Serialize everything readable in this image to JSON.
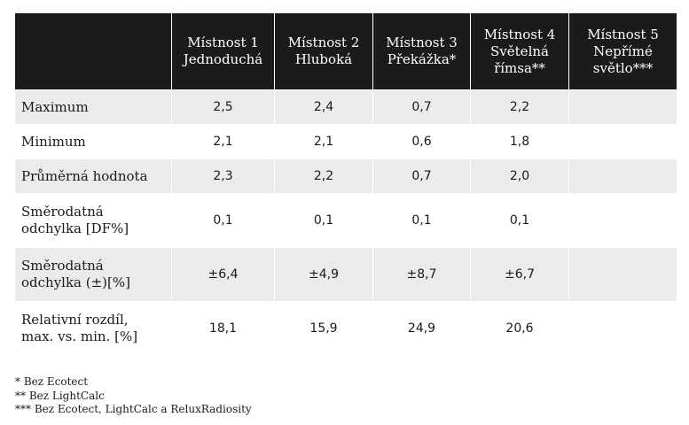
{
  "table": {
    "header": [
      "",
      "Místnost 1\nJednoduchá",
      "Místnost 2\nHluboká",
      "Místnost 3\nPřekážka*",
      "Místnost 4\nSvětelná\nřímsa**",
      "Místnost 5\nNepřímé\nsvětlo***"
    ],
    "rows": [
      {
        "label": "Maximum",
        "values": [
          "2,5",
          "2,4",
          "0,7",
          "2,2",
          ""
        ]
      },
      {
        "label": "Minimum",
        "values": [
          "2,1",
          "2,1",
          "0,6",
          "1,8",
          ""
        ]
      },
      {
        "label": "Průměrná hodnota",
        "values": [
          "2,3",
          "2,2",
          "0,7",
          "2,0",
          ""
        ]
      },
      {
        "label": "Směrodatná\nodchylka [DF%]",
        "values": [
          "0,1",
          "0,1",
          "0,1",
          "0,1",
          ""
        ]
      },
      {
        "label": "Směrodatná\nodchylka (±)[%]",
        "values": [
          "±6,4",
          "±4,9",
          "±8,7",
          "±6,7",
          ""
        ]
      },
      {
        "label": "Relativní rozdíl,\nmax. vs. min. [%]",
        "values": [
          "18,1",
          "15,9",
          "24,9",
          "20,6",
          ""
        ]
      }
    ]
  },
  "footnotes": [
    "* Bez Ecotect",
    "** Bez LightCalc",
    "*** Bez Ecotect, LightCalc a ReluxRadiosity"
  ],
  "colors": {
    "header_bg": "#1b1b1b",
    "header_text": "#ffffff",
    "row_shade": "#ebebeb",
    "row_plain": "#ffffff"
  }
}
